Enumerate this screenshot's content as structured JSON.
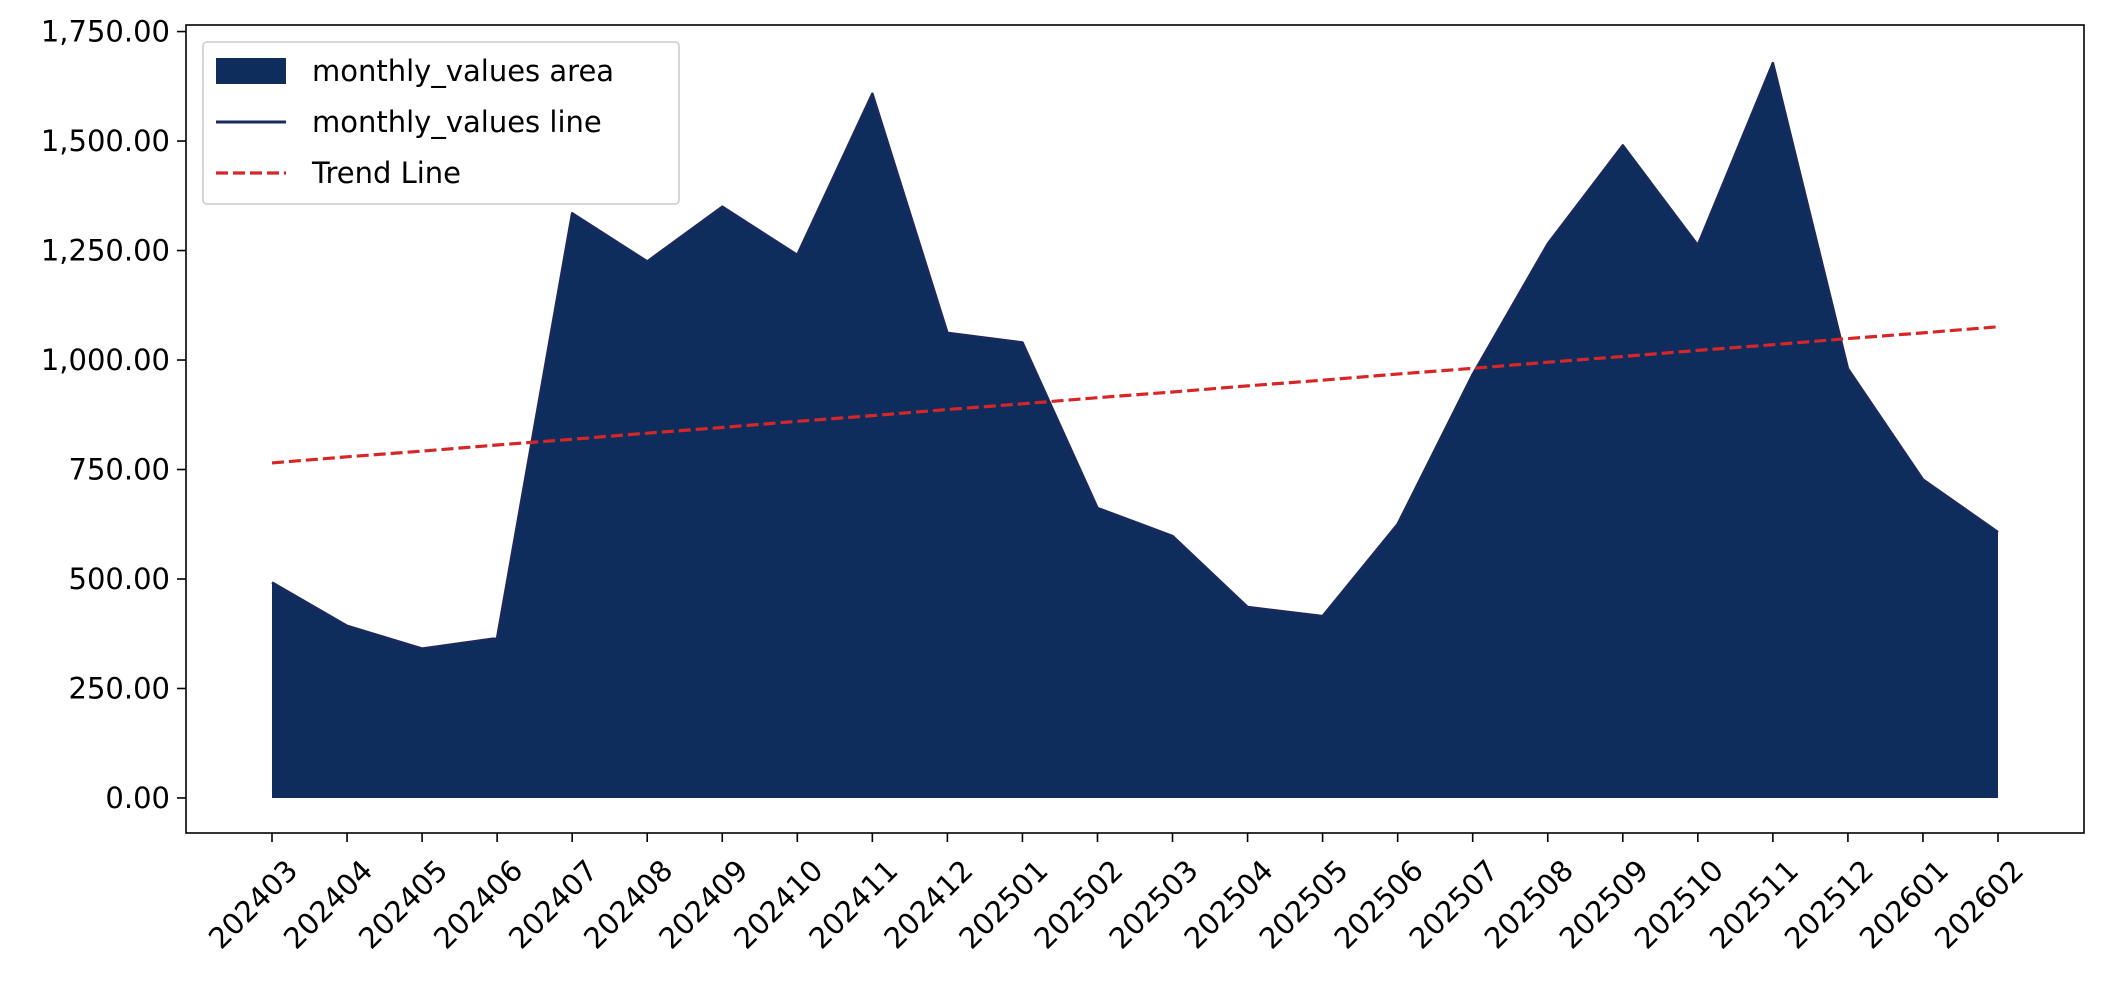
{
  "chart_data": {
    "type": "area",
    "title": "",
    "xlabel": "",
    "ylabel": "",
    "categories": [
      "202403",
      "202404",
      "202405",
      "202406",
      "202407",
      "202408",
      "202409",
      "202410",
      "202411",
      "202412",
      "202501",
      "202502",
      "202503",
      "202504",
      "202505",
      "202506",
      "202507",
      "202508",
      "202509",
      "202510",
      "202511",
      "202512",
      "202601",
      "202602"
    ],
    "series": [
      {
        "name": "monthly_values area",
        "kind": "area",
        "color": "#0e2c5c",
        "values": [
          492,
          393,
          341,
          365,
          1335,
          1225,
          1350,
          1240,
          1608,
          1062,
          1040,
          662,
          598,
          436,
          415,
          625,
          967,
          1265,
          1490,
          1262,
          1678,
          980,
          727,
          607
        ]
      },
      {
        "name": "monthly_values line",
        "kind": "line",
        "color": "#1a2a5c",
        "values": [
          492,
          393,
          341,
          365,
          1335,
          1225,
          1350,
          1240,
          1608,
          1062,
          1040,
          662,
          598,
          436,
          415,
          625,
          967,
          1265,
          1490,
          1262,
          1678,
          980,
          727,
          607
        ]
      },
      {
        "name": "Trend Line",
        "kind": "dashed-line",
        "color": "#d62728",
        "values": [
          765,
          779,
          792,
          806,
          819,
          833,
          846,
          860,
          873,
          887,
          900,
          914,
          927,
          941,
          954,
          968,
          981,
          995,
          1008,
          1022,
          1035,
          1049,
          1062,
          1076
        ]
      }
    ],
    "ylim": [
      -80,
      1765
    ],
    "yticks": [
      0,
      250,
      500,
      750,
      1000,
      1250,
      1500,
      1750
    ],
    "ytick_labels": [
      "0.00",
      "250.00",
      "500.00",
      "750.00",
      "1,000.00",
      "1,250.00",
      "1,500.00",
      "1,750.00"
    ],
    "xtick_rotation": 45,
    "grid": false,
    "legend_position": "top-left",
    "legend": [
      "monthly_values area",
      "monthly_values line",
      "Trend Line"
    ]
  }
}
